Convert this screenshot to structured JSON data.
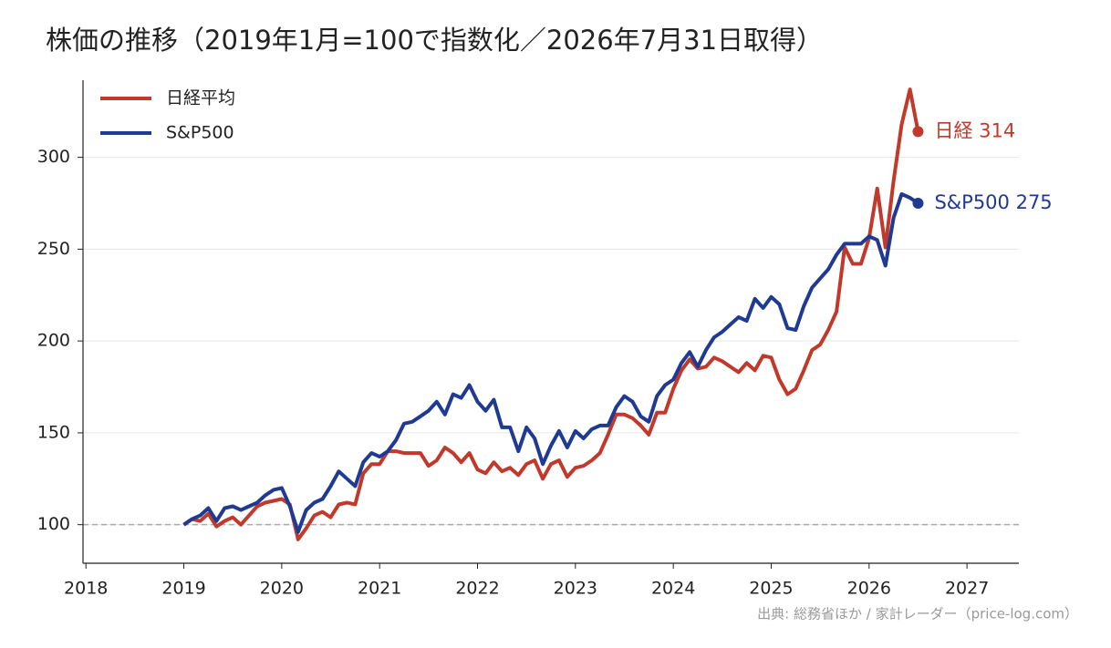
{
  "chart_data": {
    "type": "line",
    "title": "株価の推移（2019年1月=100で指数化／2026年7月31日取得）",
    "source": "出典: 総務省ほか / 家計レーダー（price-log.com）",
    "x": [
      2019.0,
      2019.083,
      2019.167,
      2019.25,
      2019.333,
      2019.417,
      2019.5,
      2019.583,
      2019.667,
      2019.75,
      2019.833,
      2019.917,
      2020.0,
      2020.083,
      2020.167,
      2020.25,
      2020.333,
      2020.417,
      2020.5,
      2020.583,
      2020.667,
      2020.75,
      2020.833,
      2020.917,
      2021.0,
      2021.083,
      2021.167,
      2021.25,
      2021.333,
      2021.417,
      2021.5,
      2021.583,
      2021.667,
      2021.75,
      2021.833,
      2021.917,
      2022.0,
      2022.083,
      2022.167,
      2022.25,
      2022.333,
      2022.417,
      2022.5,
      2022.583,
      2022.667,
      2022.75,
      2022.833,
      2022.917,
      2023.0,
      2023.083,
      2023.167,
      2023.25,
      2023.333,
      2023.417,
      2023.5,
      2023.583,
      2023.667,
      2023.75,
      2023.833,
      2023.917,
      2024.0,
      2024.083,
      2024.167,
      2024.25,
      2024.333,
      2024.417,
      2024.5,
      2024.583,
      2024.667,
      2024.75,
      2024.833,
      2024.917,
      2025.0,
      2025.083,
      2025.167,
      2025.25,
      2025.333,
      2025.417,
      2025.5,
      2025.583,
      2025.667,
      2025.75,
      2025.833,
      2025.917,
      2026.0,
      2026.083,
      2026.167,
      2026.25,
      2026.333,
      2026.417,
      2026.5
    ],
    "series": [
      {
        "name": "日経平均",
        "color": "#c0392b",
        "end_label": "日経 314",
        "values": [
          100,
          103,
          102,
          106,
          99,
          102,
          104,
          100,
          105,
          110,
          112,
          113,
          114,
          111,
          92,
          98,
          105,
          107,
          104,
          111,
          112,
          111,
          128,
          133,
          133,
          140,
          140,
          139,
          139,
          139,
          132,
          135,
          142,
          139,
          134,
          139,
          130,
          128,
          134,
          129,
          131,
          127,
          133,
          135,
          125,
          133,
          135,
          126,
          131,
          132,
          135,
          139,
          149,
          160,
          160,
          158,
          154,
          149,
          161,
          161,
          174,
          184,
          190,
          185,
          186,
          191,
          189,
          186,
          183,
          188,
          184,
          192,
          191,
          179,
          171,
          174,
          184,
          195,
          198,
          206,
          216,
          251,
          242,
          242,
          256,
          283,
          251,
          287,
          318,
          337,
          314
        ]
      },
      {
        "name": "S&P500",
        "color": "#1f3a93",
        "end_label": "S&P500 275",
        "values": [
          100,
          103,
          105,
          109,
          102,
          109,
          110,
          108,
          110,
          112,
          116,
          119,
          120,
          110,
          96,
          108,
          112,
          114,
          121,
          129,
          125,
          121,
          134,
          139,
          137,
          140,
          146,
          155,
          156,
          159,
          162,
          167,
          160,
          171,
          169,
          176,
          167,
          162,
          168,
          153,
          153,
          140,
          153,
          147,
          133,
          143,
          151,
          142,
          151,
          147,
          152,
          154,
          154,
          164,
          170,
          167,
          159,
          156,
          170,
          176,
          179,
          188,
          194,
          186,
          195,
          202,
          205,
          209,
          213,
          211,
          223,
          218,
          224,
          220,
          207,
          206,
          219,
          229,
          234,
          239,
          247,
          253,
          253,
          253,
          257,
          255,
          241,
          267,
          280,
          278,
          275
        ]
      }
    ],
    "hline": 100,
    "xlim": [
      2017.97,
      2027.53
    ],
    "xticks": [
      2018,
      2019,
      2020,
      2021,
      2022,
      2023,
      2024,
      2025,
      2026,
      2027
    ],
    "ylim": [
      79,
      342
    ],
    "yticks": [
      100,
      150,
      200,
      250,
      300
    ],
    "grid": true,
    "legend": "upper-left"
  }
}
